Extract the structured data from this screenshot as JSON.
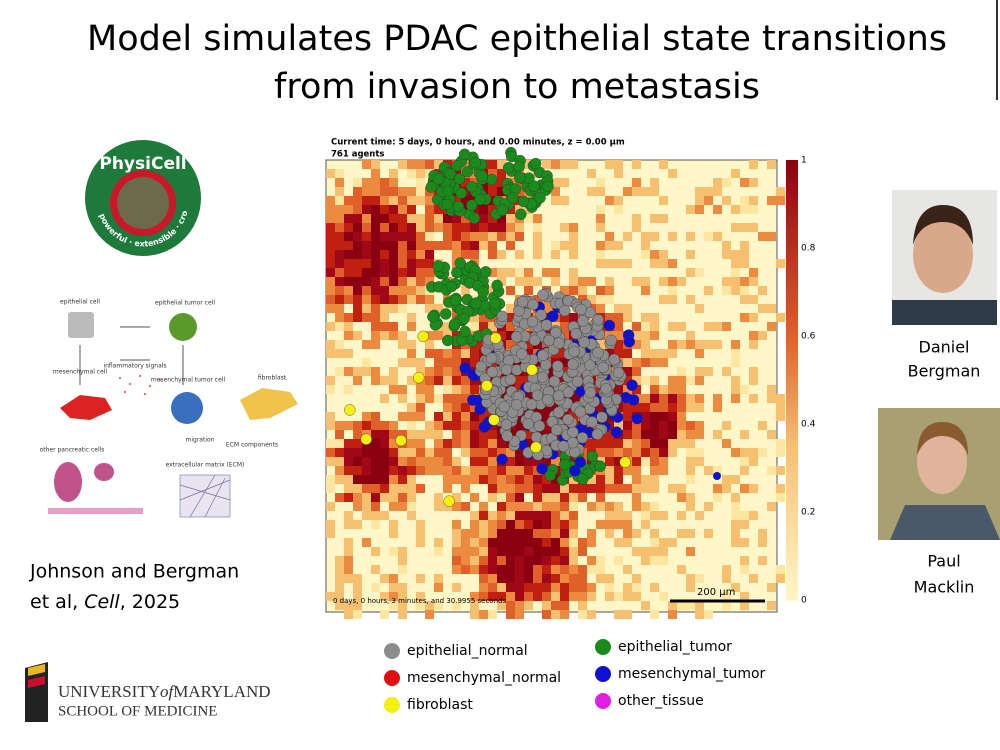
{
  "header": {
    "title_lines": [
      "Model simulates PDAC epithelial state transitions",
      "from invasion to metastasis"
    ]
  },
  "simulation": {
    "current_time": "Current time: 5 days, 0 hours, and 0.00 minutes, z = 0.00 µm",
    "agents": "761 agents",
    "elapsed": "0 days, 0 hours, 3 minutes, and 30.9955 seconds",
    "scale_bar": "200 µm",
    "colorbar_ticks": [
      "1",
      "0.8",
      "0.6",
      "0.4",
      "0.2",
      "0"
    ]
  },
  "legend": [
    {
      "label": "epithelial_normal",
      "color": "#8c8c8c"
    },
    {
      "label": "mesenchymal_normal",
      "color": "#e01010"
    },
    {
      "label": "fibroblast",
      "color": "#f5f010"
    },
    {
      "label": "epithelial_tumor",
      "color": "#1a8a1a"
    },
    {
      "label": "mesenchymal_tumor",
      "color": "#1010d0"
    },
    {
      "label": "other_tissue",
      "color": "#e020e0"
    }
  ],
  "logo": {
    "name": "PhysiCell",
    "tagline": "powerful · extensible · cross platform"
  },
  "diagram": {
    "labels": [
      "epithelial cell",
      "epithelial tumor cell",
      "inflammatory signals",
      "mesenchymal cell",
      "mesenchymal tumor cell",
      "fibroblast",
      "migration",
      "ECM components",
      "other pancreatic cells",
      "extracellular matrix (ECM)"
    ]
  },
  "citation": {
    "line1": "Johnson and Bergman",
    "line2_prefix": "et al, ",
    "journal": "Cell",
    "line2_suffix": ", 2025"
  },
  "people": [
    {
      "first": "Daniel",
      "last": "Bergman"
    },
    {
      "first": "Paul",
      "last": "Macklin"
    }
  ],
  "institution": {
    "university": "UNIVERSITY",
    "of": "of",
    "state": "MARYLAND",
    "school": "SCHOOL OF MEDICINE"
  }
}
